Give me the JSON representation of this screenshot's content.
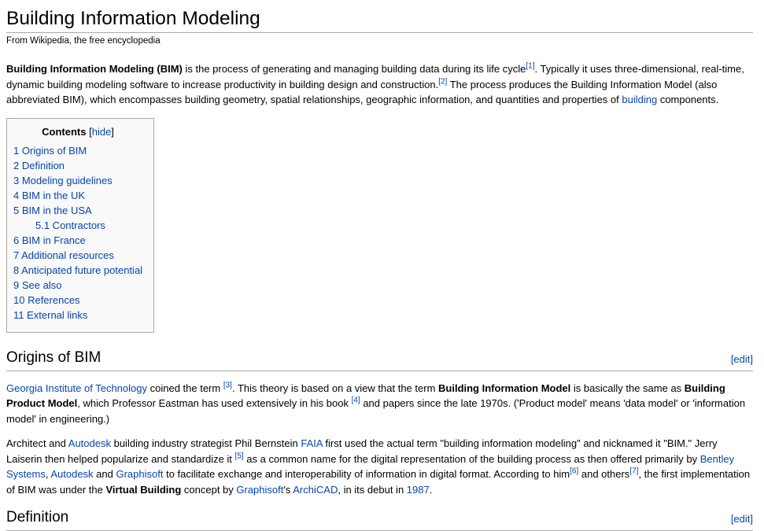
{
  "page": {
    "title": "Building Information Modeling",
    "tagline": "From Wikipedia, the free encyclopedia"
  },
  "colors": {
    "link_blue": "#0645ad",
    "rule_gray": "#aaaaaa",
    "toc_background": "#f9f9f9"
  },
  "intro": {
    "paragraph": [
      {
        "t": "b",
        "v": "Building Information Modeling (BIM)"
      },
      {
        "t": "text",
        "v": " is the process of generating and managing building data during its life cycle"
      },
      {
        "t": "sup",
        "v": "[1]"
      },
      {
        "t": "text",
        "v": ". Typically it uses three-dimensional, real-time, dynamic building modeling software to increase productivity in building design and construction."
      },
      {
        "t": "sup",
        "v": "[2]"
      },
      {
        "t": "text",
        "v": " The process produces the Building Information Model (also abbreviated BIM), which encompasses building geometry, spatial relationships, geographic information, and quantities and properties of "
      },
      {
        "t": "a",
        "v": "building"
      },
      {
        "t": "text",
        "v": " components."
      }
    ]
  },
  "toc": {
    "title": "Contents",
    "bracket_open": "[",
    "hide_label": "hide",
    "bracket_close": "]",
    "items": [
      {
        "label": "1 Origins of BIM",
        "sub": false
      },
      {
        "label": "2 Definition",
        "sub": false
      },
      {
        "label": "3 Modeling guidelines",
        "sub": false
      },
      {
        "label": "4 BIM in the UK",
        "sub": false
      },
      {
        "label": "5 BIM in the USA",
        "sub": false
      },
      {
        "label": "5.1 Contractors",
        "sub": true
      },
      {
        "label": "6 BIM in France",
        "sub": false
      },
      {
        "label": "7 Additional resources",
        "sub": false
      },
      {
        "label": "8 Anticipated future potential",
        "sub": false
      },
      {
        "label": "9 See also",
        "sub": false
      },
      {
        "label": "10 References",
        "sub": false
      },
      {
        "label": "11 External links",
        "sub": false
      }
    ]
  },
  "sections": [
    {
      "heading": "Origins of BIM",
      "edit_label": "[edit]",
      "paragraphs": [
        [
          {
            "t": "a",
            "v": "Georgia Institute of Technology"
          },
          {
            "t": "text",
            "v": " coined the term "
          },
          {
            "t": "sup",
            "v": "[3]"
          },
          {
            "t": "text",
            "v": ". This theory is based on a view that the term "
          },
          {
            "t": "b",
            "v": "Building Information Model"
          },
          {
            "t": "text",
            "v": " is basically the same as "
          },
          {
            "t": "b",
            "v": "Building Product Model"
          },
          {
            "t": "text",
            "v": ", which Professor Eastman has used extensively in his book "
          },
          {
            "t": "sup",
            "v": "[4]"
          },
          {
            "t": "text",
            "v": " and papers since the late 1970s. ('Product model' means 'data model' or 'information model' in engineering.)"
          }
        ],
        [
          {
            "t": "text",
            "v": "Architect and "
          },
          {
            "t": "a",
            "v": "Autodesk"
          },
          {
            "t": "text",
            "v": " building industry strategist Phil Bernstein "
          },
          {
            "t": "a",
            "v": "FAIA"
          },
          {
            "t": "text",
            "v": " first used the actual term \"building information modeling\" and nicknamed it \"BIM.\" Jerry Laiserin then helped popularize and standardize it "
          },
          {
            "t": "sup",
            "v": "[5]"
          },
          {
            "t": "text",
            "v": " as a common name for the digital representation of the building process as then offered primarily by "
          },
          {
            "t": "a",
            "v": "Bentley Systems"
          },
          {
            "t": "text",
            "v": ", "
          },
          {
            "t": "a",
            "v": "Autodesk"
          },
          {
            "t": "text",
            "v": " and "
          },
          {
            "t": "a",
            "v": "Graphisoft"
          },
          {
            "t": "text",
            "v": " to facilitate exchange and interoperability of information in digital format. According to him"
          },
          {
            "t": "sup",
            "v": "[6]"
          },
          {
            "t": "text",
            "v": " and others"
          },
          {
            "t": "sup",
            "v": "[7]"
          },
          {
            "t": "text",
            "v": ", the first implementation of BIM was under the "
          },
          {
            "t": "b",
            "v": "Virtual Building"
          },
          {
            "t": "text",
            "v": " concept by "
          },
          {
            "t": "a",
            "v": "Graphisoft"
          },
          {
            "t": "text",
            "v": "'s "
          },
          {
            "t": "a",
            "v": "ArchiCAD"
          },
          {
            "t": "text",
            "v": ", in its debut in "
          },
          {
            "t": "a",
            "v": "1987"
          },
          {
            "t": "text",
            "v": "."
          }
        ]
      ]
    },
    {
      "heading": "Definition",
      "edit_label": "[edit]",
      "paragraphs": []
    }
  ]
}
